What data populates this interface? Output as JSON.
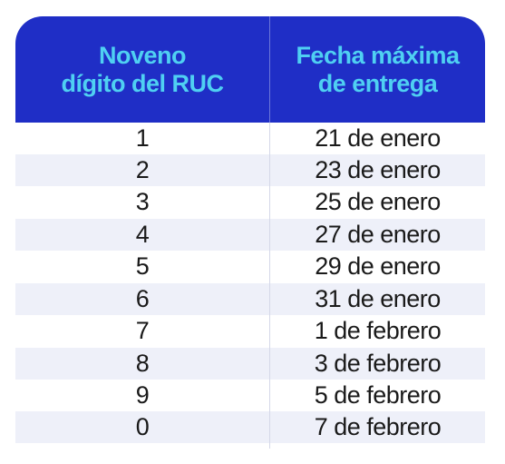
{
  "header": {
    "col1_line1": "Noveno",
    "col1_line2": "dígito del RUC",
    "col2_line1": "Fecha máxima",
    "col2_line2": "de entrega"
  },
  "rows": [
    {
      "digit": "1",
      "date": "21 de enero"
    },
    {
      "digit": "2",
      "date": "23 de enero"
    },
    {
      "digit": "3",
      "date": "25 de enero"
    },
    {
      "digit": "4",
      "date": "27 de enero"
    },
    {
      "digit": "5",
      "date": "29 de enero"
    },
    {
      "digit": "6",
      "date": "31 de enero"
    },
    {
      "digit": "7",
      "date": "1 de febrero"
    },
    {
      "digit": "8",
      "date": "3 de febrero"
    },
    {
      "digit": "9",
      "date": "5 de febrero"
    },
    {
      "digit": "0",
      "date": "7 de febrero"
    }
  ],
  "colors": {
    "header_bg": "#1f2ec6",
    "header_text": "#4fd0f2",
    "row_shade": "#eef0f9",
    "body_text": "#1a1a1a"
  }
}
